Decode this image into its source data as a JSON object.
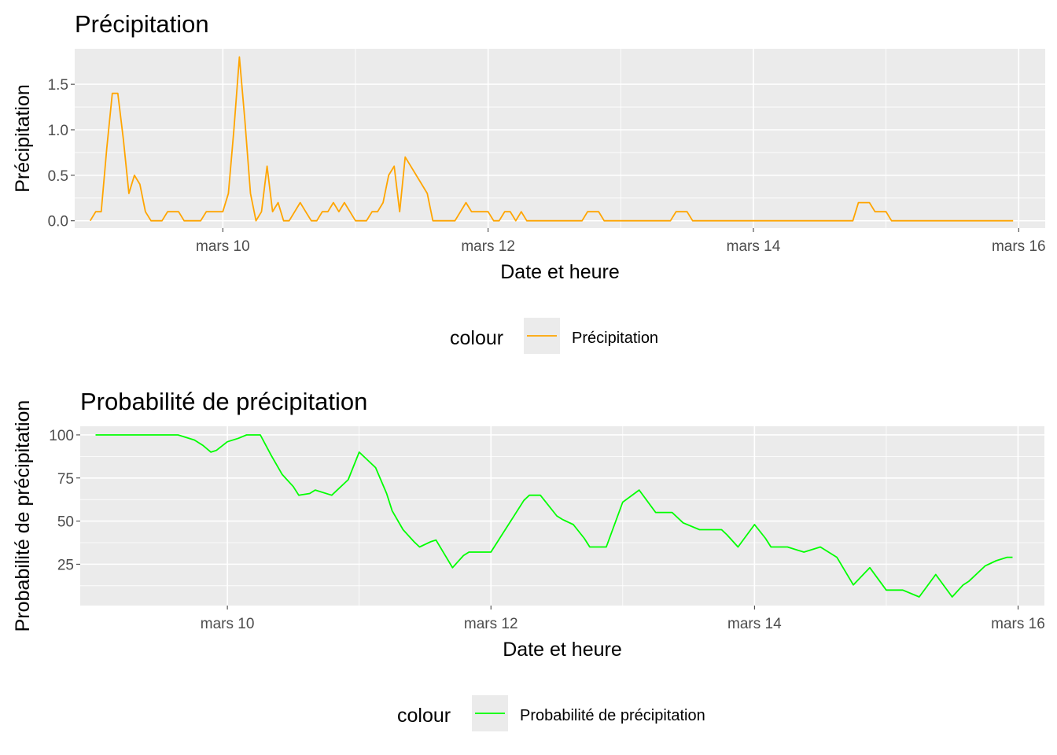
{
  "chart_data": [
    {
      "type": "line",
      "title": "Précipitation",
      "xlabel": "Date et heure",
      "ylabel": "Précipitation",
      "xlim": [
        "2024-03-08T21:12",
        "2024-03-16T04:48"
      ],
      "ylim": [
        -0.08,
        1.89
      ],
      "x_ticks": [
        {
          "value": "2024-03-10T00:00",
          "label": "mars 10"
        },
        {
          "value": "2024-03-12T00:00",
          "label": "mars 12"
        },
        {
          "value": "2024-03-14T00:00",
          "label": "mars 14"
        },
        {
          "value": "2024-03-16T00:00",
          "label": "mars 16"
        }
      ],
      "y_ticks": [
        {
          "value": 0,
          "label": "0.0"
        },
        {
          "value": 0.5,
          "label": "0.5"
        },
        {
          "value": 1,
          "label": "1.0"
        },
        {
          "value": 1.5,
          "label": "1.5"
        }
      ],
      "grid": true,
      "legend": {
        "title": "colour",
        "position": "bottom",
        "entries": [
          {
            "label": "Précipitation",
            "color": "#FFA500"
          }
        ]
      },
      "series": [
        {
          "name": "Précipitation",
          "color": "#FFA500",
          "points": [
            [
              "2024-03-09T00:00",
              0
            ],
            [
              "2024-03-09T01:00",
              0.1
            ],
            [
              "2024-03-09T02:00",
              0.1
            ],
            [
              "2024-03-09T03:00",
              0.8
            ],
            [
              "2024-03-09T04:00",
              1.4
            ],
            [
              "2024-03-09T05:00",
              1.4
            ],
            [
              "2024-03-09T06:00",
              0.9
            ],
            [
              "2024-03-09T07:00",
              0.3
            ],
            [
              "2024-03-09T08:00",
              0.5
            ],
            [
              "2024-03-09T09:00",
              0.4
            ],
            [
              "2024-03-09T10:00",
              0.1
            ],
            [
              "2024-03-09T11:00",
              0
            ],
            [
              "2024-03-09T12:00",
              0
            ],
            [
              "2024-03-09T13:00",
              0
            ],
            [
              "2024-03-09T14:00",
              0.1
            ],
            [
              "2024-03-09T15:00",
              0.1
            ],
            [
              "2024-03-09T16:00",
              0.1
            ],
            [
              "2024-03-09T17:00",
              0
            ],
            [
              "2024-03-09T18:00",
              0
            ],
            [
              "2024-03-09T19:00",
              0
            ],
            [
              "2024-03-09T20:00",
              0
            ],
            [
              "2024-03-09T21:00",
              0.1
            ],
            [
              "2024-03-09T22:00",
              0.1
            ],
            [
              "2024-03-09T23:00",
              0.1
            ],
            [
              "2024-03-10T00:00",
              0.1
            ],
            [
              "2024-03-10T01:00",
              0.3
            ],
            [
              "2024-03-10T02:00",
              1.0
            ],
            [
              "2024-03-10T03:00",
              1.8
            ],
            [
              "2024-03-10T04:00",
              1.1
            ],
            [
              "2024-03-10T05:00",
              0.3
            ],
            [
              "2024-03-10T06:00",
              0
            ],
            [
              "2024-03-10T07:00",
              0.1
            ],
            [
              "2024-03-10T08:00",
              0.6
            ],
            [
              "2024-03-10T09:00",
              0.1
            ],
            [
              "2024-03-10T10:00",
              0.2
            ],
            [
              "2024-03-10T11:00",
              0
            ],
            [
              "2024-03-10T12:00",
              0
            ],
            [
              "2024-03-10T13:00",
              0.1
            ],
            [
              "2024-03-10T14:00",
              0.2
            ],
            [
              "2024-03-10T15:00",
              0.1
            ],
            [
              "2024-03-10T16:00",
              0
            ],
            [
              "2024-03-10T17:00",
              0
            ],
            [
              "2024-03-10T18:00",
              0.1
            ],
            [
              "2024-03-10T19:00",
              0.1
            ],
            [
              "2024-03-10T20:00",
              0.2
            ],
            [
              "2024-03-10T21:00",
              0.1
            ],
            [
              "2024-03-10T22:00",
              0.2
            ],
            [
              "2024-03-10T23:00",
              0.1
            ],
            [
              "2024-03-11T00:00",
              0
            ],
            [
              "2024-03-11T01:00",
              0
            ],
            [
              "2024-03-11T02:00",
              0
            ],
            [
              "2024-03-11T03:00",
              0.1
            ],
            [
              "2024-03-11T04:00",
              0.1
            ],
            [
              "2024-03-11T05:00",
              0.2
            ],
            [
              "2024-03-11T06:00",
              0.5
            ],
            [
              "2024-03-11T07:00",
              0.6
            ],
            [
              "2024-03-11T08:00",
              0.1
            ],
            [
              "2024-03-11T09:00",
              0.7
            ],
            [
              "2024-03-11T10:00",
              0.6
            ],
            [
              "2024-03-11T11:00",
              0.5
            ],
            [
              "2024-03-11T12:00",
              0.4
            ],
            [
              "2024-03-11T13:00",
              0.3
            ],
            [
              "2024-03-11T14:00",
              0
            ],
            [
              "2024-03-11T15:00",
              0
            ],
            [
              "2024-03-11T16:00",
              0
            ],
            [
              "2024-03-11T17:00",
              0
            ],
            [
              "2024-03-11T18:00",
              0
            ],
            [
              "2024-03-11T19:00",
              0.1
            ],
            [
              "2024-03-11T20:00",
              0.2
            ],
            [
              "2024-03-11T21:00",
              0.1
            ],
            [
              "2024-03-11T22:00",
              0.1
            ],
            [
              "2024-03-11T23:00",
              0.1
            ],
            [
              "2024-03-12T00:00",
              0.1
            ],
            [
              "2024-03-12T01:00",
              0
            ],
            [
              "2024-03-12T02:00",
              0
            ],
            [
              "2024-03-12T03:00",
              0.1
            ],
            [
              "2024-03-12T04:00",
              0.1
            ],
            [
              "2024-03-12T05:00",
              0
            ],
            [
              "2024-03-12T06:00",
              0.1
            ],
            [
              "2024-03-12T07:00",
              0
            ],
            [
              "2024-03-12T08:00",
              0
            ],
            [
              "2024-03-12T09:00",
              0
            ],
            [
              "2024-03-12T10:00",
              0
            ],
            [
              "2024-03-12T11:00",
              0
            ],
            [
              "2024-03-12T12:00",
              0
            ],
            [
              "2024-03-12T13:00",
              0
            ],
            [
              "2024-03-12T14:00",
              0
            ],
            [
              "2024-03-12T15:00",
              0
            ],
            [
              "2024-03-12T16:00",
              0
            ],
            [
              "2024-03-12T17:00",
              0
            ],
            [
              "2024-03-12T18:00",
              0.1
            ],
            [
              "2024-03-12T19:00",
              0.1
            ],
            [
              "2024-03-12T20:00",
              0.1
            ],
            [
              "2024-03-12T21:00",
              0
            ],
            [
              "2024-03-12T22:00",
              0
            ],
            [
              "2024-03-12T23:00",
              0
            ],
            [
              "2024-03-13T00:00",
              0
            ],
            [
              "2024-03-13T03:00",
              0
            ],
            [
              "2024-03-13T06:00",
              0
            ],
            [
              "2024-03-13T09:00",
              0
            ],
            [
              "2024-03-13T10:00",
              0.1
            ],
            [
              "2024-03-13T11:00",
              0.1
            ],
            [
              "2024-03-13T12:00",
              0.1
            ],
            [
              "2024-03-13T13:00",
              0
            ],
            [
              "2024-03-13T18:00",
              0
            ],
            [
              "2024-03-14T00:00",
              0
            ],
            [
              "2024-03-14T06:00",
              0
            ],
            [
              "2024-03-14T12:00",
              0
            ],
            [
              "2024-03-14T18:00",
              0
            ],
            [
              "2024-03-14T19:00",
              0.2
            ],
            [
              "2024-03-14T20:00",
              0.2
            ],
            [
              "2024-03-14T21:00",
              0.2
            ],
            [
              "2024-03-14T22:00",
              0.1
            ],
            [
              "2024-03-14T23:00",
              0.1
            ],
            [
              "2024-03-15T00:00",
              0.1
            ],
            [
              "2024-03-15T01:00",
              0
            ],
            [
              "2024-03-15T06:00",
              0
            ],
            [
              "2024-03-15T12:00",
              0
            ],
            [
              "2024-03-15T18:00",
              0
            ],
            [
              "2024-03-15T23:00",
              0
            ]
          ]
        }
      ]
    },
    {
      "type": "line",
      "title": "Probabilité de précipitation",
      "xlabel": "Date et heure",
      "ylabel": "Probabilité de précipitation",
      "xlim": [
        "2024-03-08T21:12",
        "2024-03-16T04:48"
      ],
      "ylim": [
        1,
        105
      ],
      "x_ticks": [
        {
          "value": "2024-03-10T00:00",
          "label": "mars 10"
        },
        {
          "value": "2024-03-12T00:00",
          "label": "mars 12"
        },
        {
          "value": "2024-03-14T00:00",
          "label": "mars 14"
        },
        {
          "value": "2024-03-16T00:00",
          "label": "mars 16"
        }
      ],
      "y_ticks": [
        {
          "value": 25,
          "label": "25"
        },
        {
          "value": 50,
          "label": "50"
        },
        {
          "value": 75,
          "label": "75"
        },
        {
          "value": 100,
          "label": "100"
        }
      ],
      "grid": true,
      "legend": {
        "title": "colour",
        "position": "bottom",
        "entries": [
          {
            "label": "Probabilité de précipitation",
            "color": "#00FF00"
          }
        ]
      },
      "series": [
        {
          "name": "Probabilité de précipitation",
          "color": "#00FF00",
          "points": [
            [
              "2024-03-09T00:00",
              100
            ],
            [
              "2024-03-09T06:00",
              100
            ],
            [
              "2024-03-09T12:00",
              100
            ],
            [
              "2024-03-09T15:00",
              100
            ],
            [
              "2024-03-09T18:00",
              97
            ],
            [
              "2024-03-09T19:30",
              94
            ],
            [
              "2024-03-09T21:00",
              90
            ],
            [
              "2024-03-09T22:00",
              91
            ],
            [
              "2024-03-10T00:00",
              96
            ],
            [
              "2024-03-10T02:00",
              98
            ],
            [
              "2024-03-10T03:30",
              100
            ],
            [
              "2024-03-10T06:00",
              100
            ],
            [
              "2024-03-10T08:00",
              88
            ],
            [
              "2024-03-10T10:00",
              77
            ],
            [
              "2024-03-10T12:00",
              70
            ],
            [
              "2024-03-10T13:00",
              65
            ],
            [
              "2024-03-10T15:00",
              66
            ],
            [
              "2024-03-10T16:00",
              68
            ],
            [
              "2024-03-10T19:00",
              65
            ],
            [
              "2024-03-10T22:00",
              74
            ],
            [
              "2024-03-11T00:00",
              90
            ],
            [
              "2024-03-11T03:00",
              81
            ],
            [
              "2024-03-11T05:00",
              66
            ],
            [
              "2024-03-11T06:00",
              56
            ],
            [
              "2024-03-11T08:00",
              45
            ],
            [
              "2024-03-11T10:00",
              38
            ],
            [
              "2024-03-11T11:00",
              35
            ],
            [
              "2024-03-11T13:00",
              38
            ],
            [
              "2024-03-11T14:00",
              39
            ],
            [
              "2024-03-11T17:00",
              23
            ],
            [
              "2024-03-11T19:00",
              30
            ],
            [
              "2024-03-11T20:00",
              32
            ],
            [
              "2024-03-12T00:00",
              32
            ],
            [
              "2024-03-12T04:00",
              52
            ],
            [
              "2024-03-12T06:00",
              62
            ],
            [
              "2024-03-12T07:00",
              65
            ],
            [
              "2024-03-12T09:00",
              65
            ],
            [
              "2024-03-12T12:00",
              53
            ],
            [
              "2024-03-12T13:00",
              51
            ],
            [
              "2024-03-12T15:00",
              48
            ],
            [
              "2024-03-12T17:00",
              40
            ],
            [
              "2024-03-12T18:00",
              35
            ],
            [
              "2024-03-12T21:00",
              35
            ],
            [
              "2024-03-13T00:00",
              61
            ],
            [
              "2024-03-13T03:00",
              68
            ],
            [
              "2024-03-13T06:00",
              55
            ],
            [
              "2024-03-13T09:00",
              55
            ],
            [
              "2024-03-13T11:00",
              49
            ],
            [
              "2024-03-13T14:00",
              45
            ],
            [
              "2024-03-13T18:00",
              45
            ],
            [
              "2024-03-13T19:00",
              42
            ],
            [
              "2024-03-13T21:00",
              35
            ],
            [
              "2024-03-14T00:00",
              48
            ],
            [
              "2024-03-14T02:00",
              40
            ],
            [
              "2024-03-14T03:00",
              35
            ],
            [
              "2024-03-14T06:00",
              35
            ],
            [
              "2024-03-14T09:00",
              32
            ],
            [
              "2024-03-14T12:00",
              35
            ],
            [
              "2024-03-14T15:00",
              29
            ],
            [
              "2024-03-14T18:00",
              13
            ],
            [
              "2024-03-14T21:00",
              23
            ],
            [
              "2024-03-15T00:00",
              10
            ],
            [
              "2024-03-15T03:00",
              10
            ],
            [
              "2024-03-15T06:00",
              6
            ],
            [
              "2024-03-15T09:00",
              19
            ],
            [
              "2024-03-15T12:00",
              6
            ],
            [
              "2024-03-15T14:00",
              13
            ],
            [
              "2024-03-15T15:00",
              15
            ],
            [
              "2024-03-15T18:00",
              24
            ],
            [
              "2024-03-15T20:00",
              27
            ],
            [
              "2024-03-15T22:00",
              29
            ],
            [
              "2024-03-15T23:00",
              29
            ]
          ]
        }
      ]
    }
  ]
}
